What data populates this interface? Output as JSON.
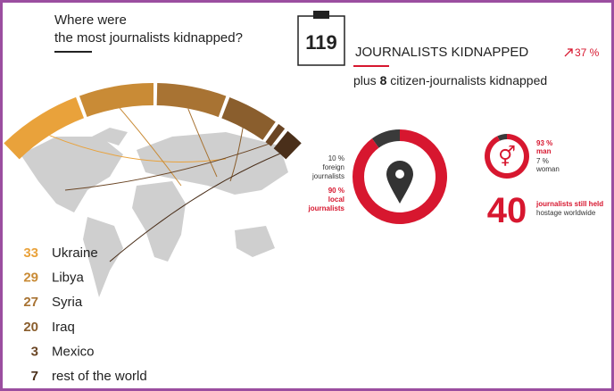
{
  "header": {
    "question": [
      "Where were",
      "the most journalists kidnapped?"
    ]
  },
  "total": {
    "value": 119,
    "label": "JOURNALISTS KIDNAPPED",
    "change": "37 %"
  },
  "citizen": {
    "prefix": "plus",
    "value": 8,
    "suffix": "citizen-journalists kidnapped"
  },
  "countries": [
    {
      "count": 33,
      "name": "Ukraine",
      "color": "#e9a23b"
    },
    {
      "count": 29,
      "name": "Libya",
      "color": "#c98b36"
    },
    {
      "count": 27,
      "name": "Syria",
      "color": "#a87333"
    },
    {
      "count": 20,
      "name": "Iraq",
      "color": "#8a5e2d"
    },
    {
      "count": 3,
      "name": "Mexico",
      "color": "#6a4524"
    },
    {
      "count": 7,
      "name": "rest of the world",
      "color": "#4a2f1a"
    }
  ],
  "origin": {
    "foreign": {
      "value": 10,
      "unit": "%",
      "label": [
        "foreign",
        "journalists"
      ],
      "color": "#3a3a3a"
    },
    "local": {
      "value": 90,
      "unit": "%",
      "label": [
        "local",
        "journalists"
      ],
      "color": "#d7172f"
    }
  },
  "gender": {
    "man": {
      "value": 93,
      "unit": "%",
      "label": "man",
      "color": "#d7172f"
    },
    "woman": {
      "value": 7,
      "unit": "%",
      "label": "woman",
      "color": "#3a3a3a"
    }
  },
  "hostage": {
    "value": 40,
    "label": [
      "journalists still held",
      "hostage worldwide"
    ]
  }
}
